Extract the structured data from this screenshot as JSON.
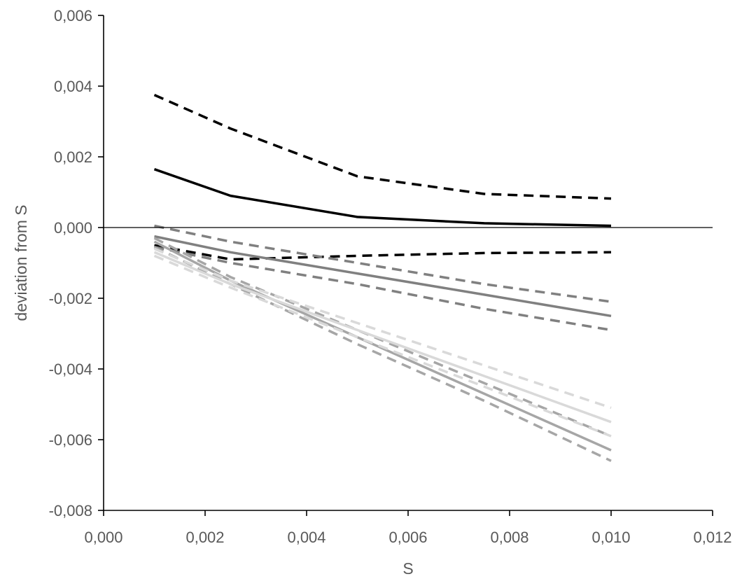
{
  "chart_data": {
    "type": "line",
    "title": "",
    "xlabel": "S",
    "ylabel": "deviation from S",
    "xlim": [
      0,
      0.012
    ],
    "ylim": [
      -0.008,
      0.006
    ],
    "x_ticks": [
      0,
      0.002,
      0.004,
      0.006,
      0.008,
      0.01,
      0.012
    ],
    "y_ticks": [
      -0.008,
      -0.006,
      -0.004,
      -0.002,
      0,
      0.002,
      0.004,
      0.006
    ],
    "x_tick_labels": [
      "0,000",
      "0,002",
      "0,004",
      "0,006",
      "0,008",
      "0,010",
      "0,012"
    ],
    "y_tick_labels": [
      "-0,008",
      "-0,006",
      "-0,004",
      "-0,002",
      "0,000",
      "0,002",
      "0,004",
      "0,006"
    ],
    "grid": false,
    "legend": "none",
    "reference_line_y": 0,
    "series": [
      {
        "color": "#000000",
        "dash": "solid",
        "x": [
          0.001,
          0.0025,
          0.005,
          0.0075,
          0.01
        ],
        "y": [
          0.00165,
          0.0009,
          0.0003,
          0.00012,
          5e-05
        ]
      },
      {
        "color": "#000000",
        "dash": "dashed",
        "x": [
          0.001,
          0.0025,
          0.005,
          0.0075,
          0.01
        ],
        "y": [
          0.00375,
          0.0028,
          0.00145,
          0.00095,
          0.00082
        ]
      },
      {
        "color": "#000000",
        "dash": "dashed",
        "x": [
          0.001,
          0.0025,
          0.005,
          0.0075,
          0.01
        ],
        "y": [
          -0.0005,
          -0.0009,
          -0.0008,
          -0.00072,
          -0.0007
        ]
      },
      {
        "color": "#808080",
        "dash": "solid",
        "x": [
          0.001,
          0.0025,
          0.005,
          0.0075,
          0.01
        ],
        "y": [
          -0.00025,
          -0.0007,
          -0.0013,
          -0.0019,
          -0.0025
        ]
      },
      {
        "color": "#808080",
        "dash": "dashed",
        "x": [
          0.001,
          0.0025,
          0.005,
          0.0075,
          0.01
        ],
        "y": [
          5e-05,
          -0.0004,
          -0.001,
          -0.0016,
          -0.0021
        ]
      },
      {
        "color": "#808080",
        "dash": "dashed",
        "x": [
          0.001,
          0.0025,
          0.005,
          0.0075,
          0.01
        ],
        "y": [
          -0.00055,
          -0.001,
          -0.0016,
          -0.0023,
          -0.0029
        ]
      },
      {
        "color": "#a6a6a6",
        "dash": "solid",
        "x": [
          0.001,
          0.0025,
          0.005,
          0.0075,
          0.01
        ],
        "y": [
          -0.0004,
          -0.0015,
          -0.0031,
          -0.0047,
          -0.0063
        ]
      },
      {
        "color": "#a6a6a6",
        "dash": "dashed",
        "x": [
          0.001,
          0.0025,
          0.005,
          0.0075,
          0.01
        ],
        "y": [
          -0.0003,
          -0.0014,
          -0.0029,
          -0.0044,
          -0.0059
        ]
      },
      {
        "color": "#a6a6a6",
        "dash": "dashed",
        "x": [
          0.001,
          0.0025,
          0.005,
          0.0075,
          0.01
        ],
        "y": [
          -0.00055,
          -0.0016,
          -0.0033,
          -0.0049,
          -0.0066
        ]
      },
      {
        "color": "#d9d9d9",
        "dash": "solid",
        "x": [
          0.001,
          0.0025,
          0.005,
          0.0075,
          0.01
        ],
        "y": [
          -0.0007,
          -0.0016,
          -0.0029,
          -0.0042,
          -0.0055
        ]
      },
      {
        "color": "#d9d9d9",
        "dash": "dashed",
        "x": [
          0.001,
          0.0025,
          0.005,
          0.0075,
          0.01
        ],
        "y": [
          -0.0006,
          -0.0015,
          -0.0027,
          -0.0039,
          -0.0051
        ]
      },
      {
        "color": "#d9d9d9",
        "dash": "dashed",
        "x": [
          0.001,
          0.0025,
          0.005,
          0.0075,
          0.01
        ],
        "y": [
          -0.0008,
          -0.0017,
          -0.0031,
          -0.0045,
          -0.0059
        ]
      }
    ]
  }
}
